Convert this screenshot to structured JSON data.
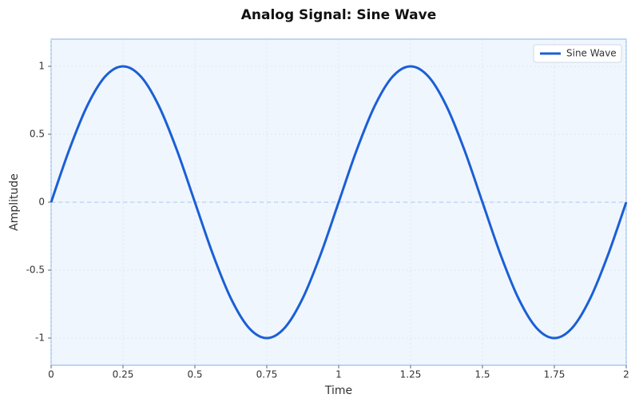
{
  "chart_data": {
    "type": "line",
    "title": "Analog Signal: Sine Wave",
    "x_label": "Time",
    "y_label": "Amplitude",
    "x": [
      0,
      0.0625,
      0.125,
      0.1875,
      0.25,
      0.3125,
      0.375,
      0.4375,
      0.5,
      0.5625,
      0.625,
      0.6875,
      0.75,
      0.8125,
      0.875,
      0.9375,
      1,
      1.0625,
      1.125,
      1.1875,
      1.25,
      1.3125,
      1.375,
      1.4375,
      1.5,
      1.5625,
      1.625,
      1.6875,
      1.75,
      1.8125,
      1.875,
      1.9375,
      2
    ],
    "series": [
      {
        "name": "Sine Wave",
        "color": "#1a5fd6",
        "values": [
          0,
          0.383,
          0.707,
          0.924,
          1,
          0.924,
          0.707,
          0.383,
          0,
          -0.383,
          -0.707,
          -0.924,
          -1,
          -0.924,
          -0.707,
          -0.383,
          0,
          0.383,
          0.707,
          0.924,
          1,
          0.924,
          0.707,
          0.383,
          0,
          -0.383,
          -0.707,
          -0.924,
          -1,
          -0.924,
          -0.707,
          -0.383,
          0
        ]
      }
    ],
    "xlim": [
      0,
      2
    ],
    "ylim": [
      -1.2,
      1.2
    ],
    "xticks": [
      0,
      0.25,
      0.5,
      0.75,
      1,
      1.25,
      1.5,
      1.75,
      2
    ],
    "yticks": [
      -1,
      -0.5,
      0,
      0.5,
      1
    ],
    "hline": 0,
    "grid": true,
    "legend": "upper right"
  }
}
